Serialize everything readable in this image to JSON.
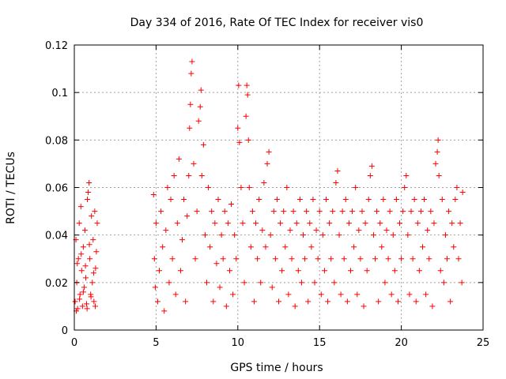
{
  "chart_data": {
    "type": "scatter",
    "title": "Day 334 of 2016, Rate Of TEC Index for receiver vis0",
    "xlabel": "GPS time / hours",
    "ylabel": "ROTI / TECUs",
    "xlim": [
      0,
      25
    ],
    "ylim": [
      0,
      0.12
    ],
    "xticks": [
      0,
      5,
      10,
      15,
      20,
      25
    ],
    "xtick_labels": [
      "0",
      "5",
      "10",
      "15",
      "20",
      "25"
    ],
    "yticks": [
      0,
      0.02,
      0.04,
      0.06,
      0.08,
      0.1,
      0.12
    ],
    "ytick_labels": [
      "0",
      "0.02",
      "0.04",
      "0.06",
      "0.08",
      "0.1",
      "0.12"
    ],
    "grid": true,
    "marker": "+",
    "color": "#ff0000",
    "series": [
      {
        "name": "ROTI",
        "points": [
          [
            0.05,
            0.012
          ],
          [
            0.1,
            0.038
          ],
          [
            0.15,
            0.02
          ],
          [
            0.2,
            0.009
          ],
          [
            0.25,
            0.03
          ],
          [
            0.3,
            0.045
          ],
          [
            0.35,
            0.015
          ],
          [
            0.4,
            0.052
          ],
          [
            0.45,
            0.025
          ],
          [
            0.5,
            0.01
          ],
          [
            0.55,
            0.035
          ],
          [
            0.6,
            0.018
          ],
          [
            0.65,
            0.042
          ],
          [
            0.7,
            0.022
          ],
          [
            0.75,
            0.011
          ],
          [
            0.8,
            0.055
          ],
          [
            0.85,
            0.058
          ],
          [
            0.9,
            0.062
          ],
          [
            0.95,
            0.03
          ],
          [
            1.0,
            0.015
          ],
          [
            1.05,
            0.048
          ],
          [
            1.1,
            0.02
          ],
          [
            1.15,
            0.038
          ],
          [
            1.2,
            0.012
          ],
          [
            1.25,
            0.05
          ],
          [
            1.3,
            0.026
          ],
          [
            1.35,
            0.033
          ],
          [
            1.4,
            0.045
          ],
          [
            0.12,
            0.008
          ],
          [
            0.32,
            0.013
          ],
          [
            0.55,
            0.016
          ],
          [
            0.78,
            0.009
          ],
          [
            1.02,
            0.014
          ],
          [
            1.28,
            0.01
          ],
          [
            0.18,
            0.028
          ],
          [
            0.42,
            0.032
          ],
          [
            0.68,
            0.027
          ],
          [
            0.92,
            0.036
          ],
          [
            1.18,
            0.024
          ],
          [
            4.85,
            0.057
          ],
          [
            4.9,
            0.03
          ],
          [
            4.95,
            0.018
          ],
          [
            5.0,
            0.045
          ],
          [
            5.1,
            0.012
          ],
          [
            5.2,
            0.025
          ],
          [
            5.3,
            0.05
          ],
          [
            5.4,
            0.035
          ],
          [
            5.5,
            0.008
          ],
          [
            5.6,
            0.042
          ],
          [
            5.7,
            0.06
          ],
          [
            5.8,
            0.02
          ],
          [
            5.9,
            0.055
          ],
          [
            6.0,
            0.03
          ],
          [
            6.1,
            0.065
          ],
          [
            6.2,
            0.015
          ],
          [
            6.3,
            0.045
          ],
          [
            6.4,
            0.072
          ],
          [
            6.5,
            0.025
          ],
          [
            6.6,
            0.038
          ],
          [
            6.7,
            0.055
          ],
          [
            6.8,
            0.012
          ],
          [
            6.9,
            0.048
          ],
          [
            7.0,
            0.065
          ],
          [
            7.05,
            0.085
          ],
          [
            7.1,
            0.095
          ],
          [
            7.15,
            0.108
          ],
          [
            7.2,
            0.113
          ],
          [
            7.3,
            0.07
          ],
          [
            7.4,
            0.03
          ],
          [
            7.5,
            0.05
          ],
          [
            7.6,
            0.088
          ],
          [
            7.7,
            0.094
          ],
          [
            7.75,
            0.101
          ],
          [
            7.8,
            0.065
          ],
          [
            7.9,
            0.078
          ],
          [
            8.0,
            0.04
          ],
          [
            8.1,
            0.02
          ],
          [
            8.2,
            0.06
          ],
          [
            8.3,
            0.035
          ],
          [
            8.4,
            0.05
          ],
          [
            8.5,
            0.012
          ],
          [
            8.6,
            0.045
          ],
          [
            8.7,
            0.028
          ],
          [
            8.8,
            0.055
          ],
          [
            8.9,
            0.018
          ],
          [
            9.0,
            0.04
          ],
          [
            9.1,
            0.03
          ],
          [
            9.2,
            0.05
          ],
          [
            9.3,
            0.01
          ],
          [
            9.4,
            0.045
          ],
          [
            9.5,
            0.025
          ],
          [
            9.6,
            0.053
          ],
          [
            9.7,
            0.015
          ],
          [
            9.8,
            0.04
          ],
          [
            9.9,
            0.03
          ],
          [
            10.0,
            0.085
          ],
          [
            10.05,
            0.103
          ],
          [
            10.1,
            0.079
          ],
          [
            10.2,
            0.06
          ],
          [
            10.3,
            0.045
          ],
          [
            10.4,
            0.02
          ],
          [
            10.5,
            0.09
          ],
          [
            10.55,
            0.103
          ],
          [
            10.6,
            0.099
          ],
          [
            10.65,
            0.08
          ],
          [
            10.7,
            0.06
          ],
          [
            10.8,
            0.035
          ],
          [
            10.9,
            0.05
          ],
          [
            11.0,
            0.012
          ],
          [
            11.1,
            0.045
          ],
          [
            11.2,
            0.03
          ],
          [
            11.3,
            0.055
          ],
          [
            11.4,
            0.02
          ],
          [
            11.5,
            0.042
          ],
          [
            11.6,
            0.062
          ],
          [
            11.7,
            0.035
          ],
          [
            11.8,
            0.07
          ],
          [
            11.9,
            0.075
          ],
          [
            12.0,
            0.04
          ],
          [
            12.1,
            0.018
          ],
          [
            12.2,
            0.05
          ],
          [
            12.3,
            0.03
          ],
          [
            12.4,
            0.055
          ],
          [
            12.5,
            0.012
          ],
          [
            12.6,
            0.045
          ],
          [
            12.7,
            0.025
          ],
          [
            12.8,
            0.05
          ],
          [
            12.9,
            0.035
          ],
          [
            13.0,
            0.06
          ],
          [
            13.1,
            0.015
          ],
          [
            13.2,
            0.042
          ],
          [
            13.3,
            0.03
          ],
          [
            13.4,
            0.05
          ],
          [
            13.5,
            0.01
          ],
          [
            13.6,
            0.045
          ],
          [
            13.7,
            0.025
          ],
          [
            13.8,
            0.055
          ],
          [
            13.9,
            0.02
          ],
          [
            14.0,
            0.04
          ],
          [
            14.1,
            0.03
          ],
          [
            14.2,
            0.05
          ],
          [
            14.3,
            0.012
          ],
          [
            14.4,
            0.045
          ],
          [
            14.5,
            0.035
          ],
          [
            14.6,
            0.055
          ],
          [
            14.7,
            0.02
          ],
          [
            14.8,
            0.042
          ],
          [
            14.9,
            0.03
          ],
          [
            15.0,
            0.05
          ],
          [
            15.1,
            0.015
          ],
          [
            15.2,
            0.04
          ],
          [
            15.3,
            0.025
          ],
          [
            15.4,
            0.055
          ],
          [
            15.5,
            0.012
          ],
          [
            15.6,
            0.045
          ],
          [
            15.7,
            0.03
          ],
          [
            15.8,
            0.05
          ],
          [
            15.9,
            0.02
          ],
          [
            16.0,
            0.062
          ],
          [
            16.1,
            0.067
          ],
          [
            16.2,
            0.04
          ],
          [
            16.3,
            0.015
          ],
          [
            16.4,
            0.05
          ],
          [
            16.5,
            0.03
          ],
          [
            16.6,
            0.055
          ],
          [
            16.7,
            0.012
          ],
          [
            16.8,
            0.045
          ],
          [
            16.9,
            0.025
          ],
          [
            17.0,
            0.05
          ],
          [
            17.1,
            0.035
          ],
          [
            17.2,
            0.06
          ],
          [
            17.3,
            0.015
          ],
          [
            17.4,
            0.042
          ],
          [
            17.5,
            0.03
          ],
          [
            17.6,
            0.05
          ],
          [
            17.7,
            0.01
          ],
          [
            17.8,
            0.045
          ],
          [
            17.9,
            0.025
          ],
          [
            18.0,
            0.055
          ],
          [
            18.1,
            0.065
          ],
          [
            18.2,
            0.069
          ],
          [
            18.3,
            0.04
          ],
          [
            18.4,
            0.03
          ],
          [
            18.5,
            0.05
          ],
          [
            18.6,
            0.012
          ],
          [
            18.7,
            0.045
          ],
          [
            18.8,
            0.035
          ],
          [
            18.9,
            0.055
          ],
          [
            19.0,
            0.02
          ],
          [
            19.1,
            0.042
          ],
          [
            19.2,
            0.03
          ],
          [
            19.3,
            0.05
          ],
          [
            19.4,
            0.015
          ],
          [
            19.5,
            0.04
          ],
          [
            19.6,
            0.025
          ],
          [
            19.7,
            0.055
          ],
          [
            19.8,
            0.012
          ],
          [
            19.9,
            0.045
          ],
          [
            20.0,
            0.03
          ],
          [
            20.1,
            0.05
          ],
          [
            20.2,
            0.06
          ],
          [
            20.3,
            0.065
          ],
          [
            20.4,
            0.04
          ],
          [
            20.5,
            0.015
          ],
          [
            20.6,
            0.05
          ],
          [
            20.7,
            0.03
          ],
          [
            20.8,
            0.055
          ],
          [
            20.9,
            0.012
          ],
          [
            21.0,
            0.045
          ],
          [
            21.1,
            0.025
          ],
          [
            21.2,
            0.05
          ],
          [
            21.3,
            0.035
          ],
          [
            21.4,
            0.055
          ],
          [
            21.5,
            0.015
          ],
          [
            21.6,
            0.042
          ],
          [
            21.7,
            0.03
          ],
          [
            21.8,
            0.05
          ],
          [
            21.9,
            0.01
          ],
          [
            22.0,
            0.045
          ],
          [
            22.1,
            0.07
          ],
          [
            22.2,
            0.075
          ],
          [
            22.25,
            0.08
          ],
          [
            22.3,
            0.065
          ],
          [
            22.4,
            0.025
          ],
          [
            22.5,
            0.055
          ],
          [
            22.6,
            0.02
          ],
          [
            22.7,
            0.04
          ],
          [
            22.8,
            0.03
          ],
          [
            22.9,
            0.05
          ],
          [
            23.0,
            0.012
          ],
          [
            23.1,
            0.045
          ],
          [
            23.2,
            0.035
          ],
          [
            23.3,
            0.055
          ],
          [
            23.4,
            0.06
          ],
          [
            23.5,
            0.03
          ],
          [
            23.6,
            0.045
          ],
          [
            23.7,
            0.02
          ],
          [
            23.75,
            0.058
          ]
        ]
      }
    ]
  }
}
